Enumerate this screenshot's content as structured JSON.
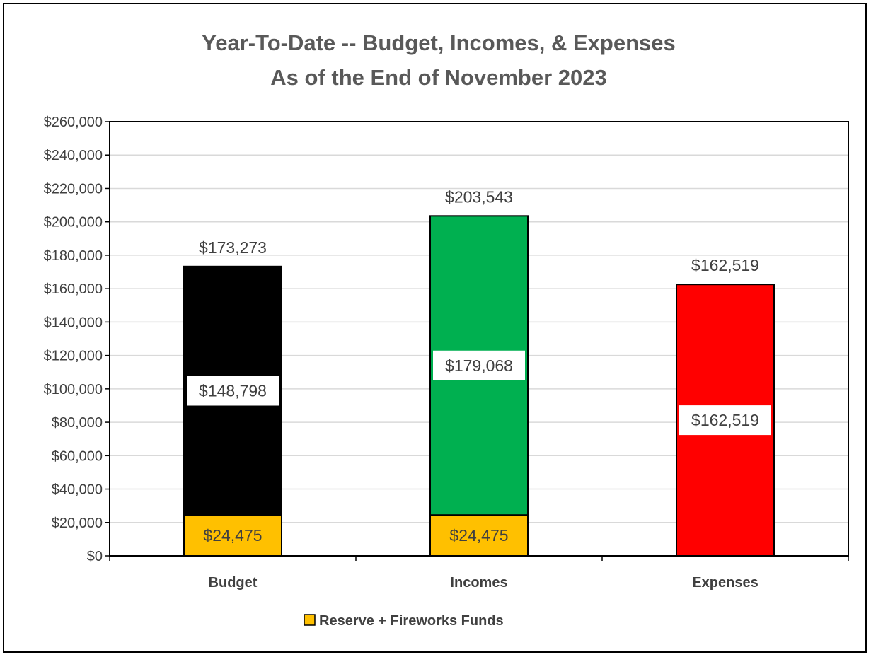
{
  "chart_data": {
    "type": "bar",
    "stacked": true,
    "title": "Year-To-Date -- Budget, Incomes, & Expenses",
    "subtitle": "As of the End of November 2023",
    "categories": [
      "Budget",
      "Incomes",
      "Expenses"
    ],
    "ylim": [
      0,
      260000
    ],
    "ytick_step": 20000,
    "ytick_labels": [
      "$0",
      "$20,000",
      "$40,000",
      "$60,000",
      "$80,000",
      "$100,000",
      "$120,000",
      "$140,000",
      "$160,000",
      "$180,000",
      "$200,000",
      "$220,000",
      "$240,000",
      "$260,000"
    ],
    "grid": true,
    "legend_position": "bottom",
    "series": [
      {
        "name": "Reserve + Fireworks Funds",
        "values": [
          24475,
          24475,
          0
        ],
        "labels": [
          "$24,475",
          "$24,475",
          ""
        ],
        "colors": [
          "#ffc000",
          "#ffc000",
          "#ffc000"
        ],
        "in_legend": true
      },
      {
        "values": [
          148798,
          179068,
          162519
        ],
        "labels": [
          "$148,798",
          "$179,068",
          "$162,519"
        ],
        "colors": [
          "#000000",
          "#00b050",
          "#ff0000"
        ],
        "in_legend": false
      }
    ],
    "totals": [
      173273,
      203543,
      162519
    ],
    "total_labels": [
      "$173,273",
      "$203,543",
      "$162,519"
    ]
  }
}
